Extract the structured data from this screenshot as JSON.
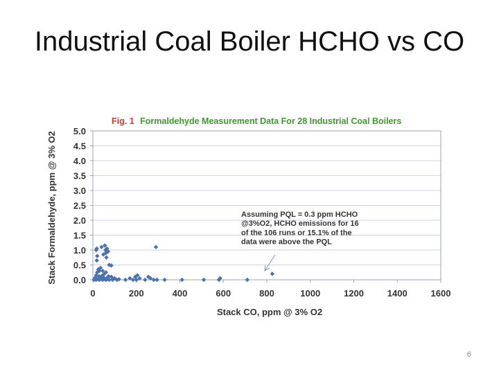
{
  "slide": {
    "title": "Industrial Coal Boiler HCHO vs CO",
    "page_number": "6"
  },
  "colors": {
    "marker": "#4a72b0",
    "title_red": "#d0392b",
    "title_green": "#3e9a2e",
    "plot_border": "#9aa1c0",
    "gridline": "#cfd3e6"
  },
  "chart_data": {
    "type": "scatter",
    "title_prefix": "Fig. 1",
    "title": "Formaldehyde Measurement Data For 28 Industrial Coal Boilers",
    "xlabel": "Stack CO, ppm @ 3% O2",
    "ylabel": "Stack Formaldehyde, ppm @ 3% O2",
    "xlim": [
      0,
      1600
    ],
    "ylim": [
      0,
      5
    ],
    "xticks": [
      "0",
      "200",
      "400",
      "600",
      "800",
      "1000",
      "1200",
      "1400",
      "1600"
    ],
    "yticks": [
      "0.0",
      "0.5",
      "1.0",
      "1.5",
      "2.0",
      "2.5",
      "3.0",
      "3.5",
      "4.0",
      "4.5",
      "5.0"
    ],
    "grid": true,
    "annotation": {
      "lines": [
        "Assuming PQL = 0.3 ppm HCHO",
        "@3%O2, HCHO emissions for 16",
        "of the 106 runs or 15.1% of the",
        "data were above the PQL"
      ],
      "arrow_target": [
        790,
        0.3
      ]
    },
    "points": [
      [
        15,
        1.0
      ],
      [
        18,
        1.05
      ],
      [
        40,
        1.1
      ],
      [
        55,
        1.15
      ],
      [
        65,
        1.05
      ],
      [
        58,
        1.0
      ],
      [
        70,
        0.95
      ],
      [
        60,
        0.9
      ],
      [
        48,
        0.85
      ],
      [
        62,
        0.75
      ],
      [
        20,
        0.8
      ],
      [
        18,
        0.65
      ],
      [
        75,
        0.5
      ],
      [
        85,
        0.48
      ],
      [
        35,
        0.4
      ],
      [
        25,
        0.35
      ],
      [
        30,
        0.3
      ],
      [
        45,
        0.3
      ],
      [
        60,
        0.25
      ],
      [
        20,
        0.25
      ],
      [
        50,
        0.18
      ],
      [
        15,
        0.15
      ],
      [
        40,
        0.12
      ],
      [
        72,
        0.12
      ],
      [
        35,
        0.1
      ],
      [
        85,
        0.1
      ],
      [
        100,
        0.05
      ],
      [
        10,
        0.05
      ],
      [
        25,
        0.02
      ],
      [
        40,
        0.02
      ],
      [
        55,
        0.02
      ],
      [
        65,
        0.02
      ],
      [
        5,
        0.0
      ],
      [
        15,
        0.0
      ],
      [
        30,
        0.0
      ],
      [
        45,
        0.0
      ],
      [
        60,
        0.0
      ],
      [
        75,
        0.0
      ],
      [
        90,
        0.0
      ],
      [
        110,
        0.0
      ],
      [
        150,
        0.0
      ],
      [
        170,
        0.05
      ],
      [
        185,
        0.0
      ],
      [
        195,
        0.1
      ],
      [
        200,
        0.0
      ],
      [
        215,
        0.05
      ],
      [
        240,
        0.0
      ],
      [
        255,
        0.1
      ],
      [
        280,
        0.0
      ],
      [
        295,
        0.0
      ],
      [
        330,
        0.0
      ],
      [
        410,
        0.0
      ],
      [
        510,
        0.0
      ],
      [
        580,
        0.0
      ],
      [
        585,
        0.05
      ],
      [
        710,
        0.0
      ],
      [
        825,
        0.2
      ],
      [
        290,
        1.1
      ],
      [
        8,
        0.02
      ],
      [
        12,
        0.08
      ],
      [
        28,
        0.12
      ],
      [
        52,
        0.06
      ],
      [
        68,
        0.08
      ],
      [
        92,
        0.03
      ],
      [
        120,
        0.02
      ],
      [
        205,
        0.15
      ],
      [
        265,
        0.05
      ]
    ]
  }
}
